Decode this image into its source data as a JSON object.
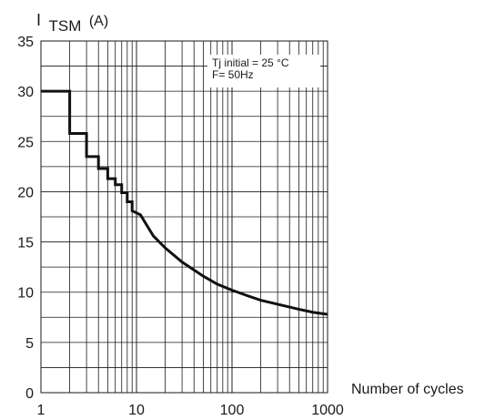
{
  "chart_data": {
    "type": "line",
    "title": "",
    "ylabel": {
      "prefix": "I",
      "sub": "TSM",
      "unit": "(A)"
    },
    "xlabel": "Number of cycles",
    "x_scale": "log",
    "xlim": [
      1,
      1000
    ],
    "ylim": [
      0,
      35
    ],
    "x_ticks": [
      "1",
      "10",
      "100",
      "1000"
    ],
    "y_ticks": [
      "0",
      "5",
      "10",
      "15",
      "20",
      "25",
      "30",
      "35"
    ],
    "grid": true,
    "annotation": [
      "Tj initial = 25 °C",
      "F= 50Hz"
    ],
    "annotation_position": "top-right",
    "series": [
      {
        "x": [
          1,
          2,
          2,
          3,
          3,
          4,
          4,
          5,
          5,
          6,
          6,
          7,
          7,
          8,
          8,
          9,
          9,
          11,
          15,
          20,
          30,
          50,
          70,
          100,
          150,
          200,
          300,
          500,
          700,
          1000
        ],
        "y": [
          30,
          30,
          25.8,
          25.8,
          23.5,
          23.5,
          22.3,
          22.3,
          21.3,
          21.3,
          20.7,
          20.7,
          19.9,
          19.9,
          19.0,
          19.0,
          18.1,
          17.7,
          15.6,
          14.4,
          13.0,
          11.6,
          10.8,
          10.2,
          9.6,
          9.2,
          8.8,
          8.3,
          8.0,
          7.8
        ]
      }
    ]
  }
}
